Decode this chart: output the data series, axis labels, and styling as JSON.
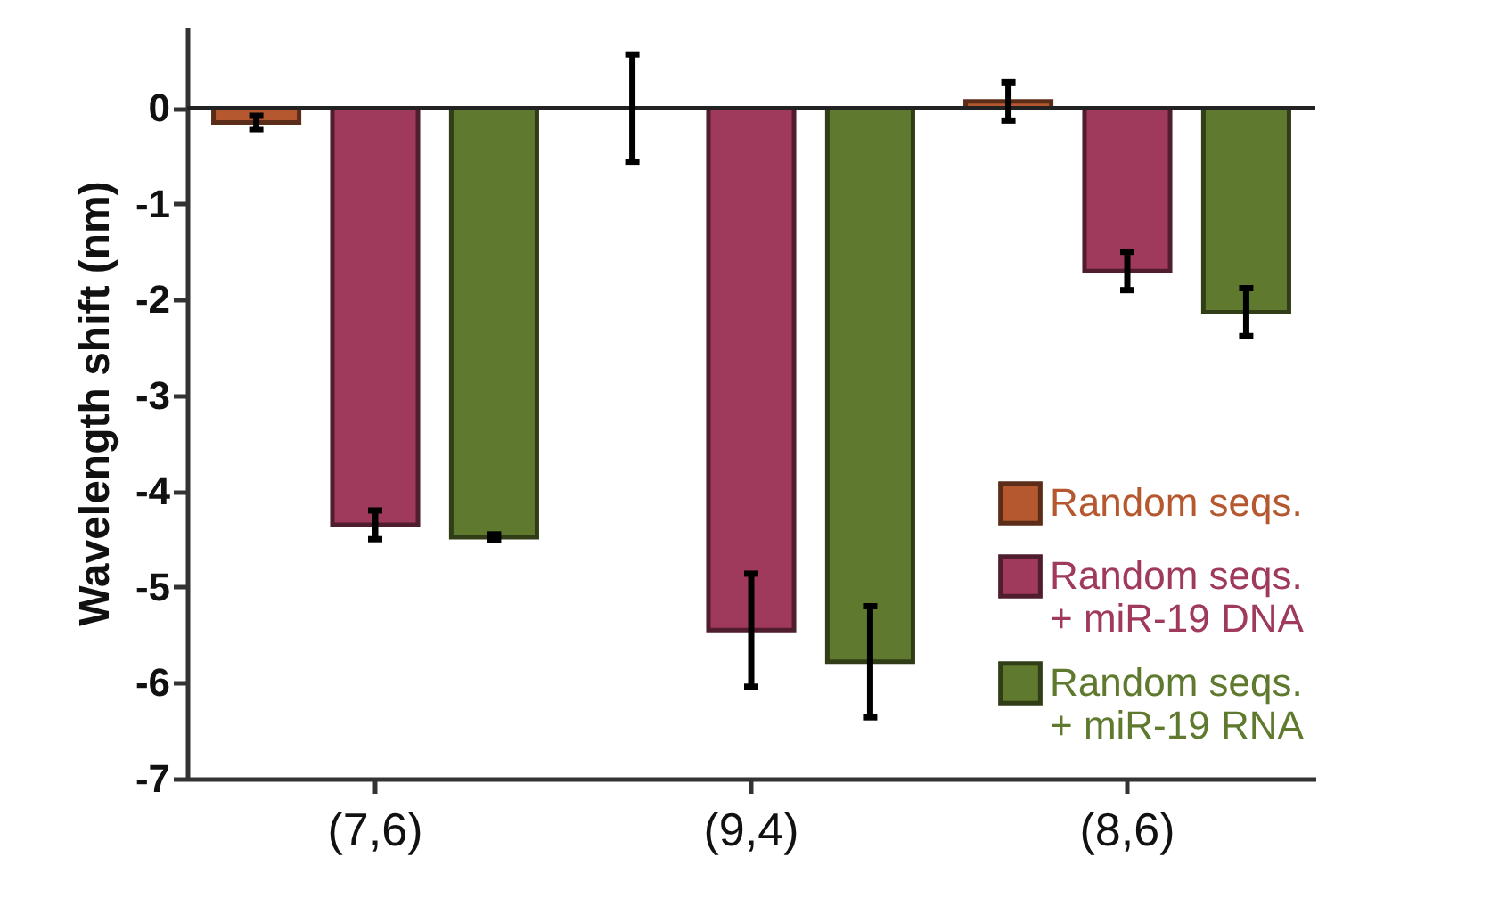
{
  "chart_data": {
    "type": "bar",
    "ylabel": "Wavelength shift (nm)",
    "categories": [
      "(7,6)",
      "(9,4)",
      "(8,6)"
    ],
    "series": [
      {
        "name": "Random seqs.",
        "color": "#b5582f",
        "values": [
          -0.15,
          0,
          0.07
        ],
        "errors": [
          0.07,
          0.56,
          0.2
        ]
      },
      {
        "name": "Random seqs. + miR-19 DNA",
        "color": "#a03a5c",
        "values": [
          -4.35,
          -5.45,
          -1.7
        ],
        "errors": [
          0.15,
          0.59,
          0.2
        ]
      },
      {
        "name": "Random seqs. + miR-19 RNA",
        "color": "#5f7a2e",
        "values": [
          -4.48,
          -5.78,
          -2.13
        ],
        "errors": [
          0.03,
          0.58,
          0.25
        ]
      }
    ],
    "ylim": [
      -7,
      0.85
    ],
    "yticks": [
      0,
      -1,
      -2,
      -3,
      -4,
      -5,
      -6,
      -7
    ],
    "grid": false,
    "legend": "bottom right",
    "ref_lines": [
      {
        "axis": "y",
        "value": 0,
        "color": "#222222"
      }
    ]
  }
}
